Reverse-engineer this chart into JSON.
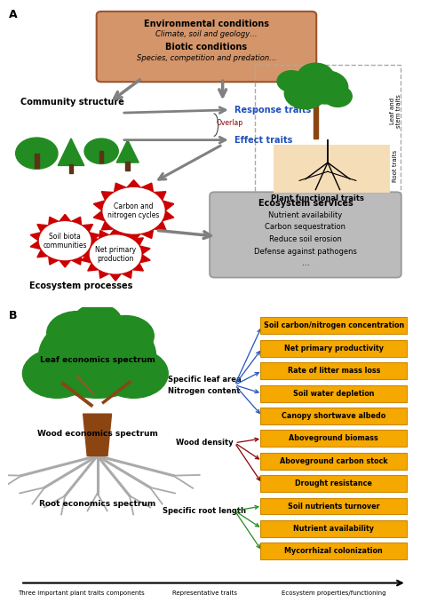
{
  "fig_width": 4.74,
  "fig_height": 6.78,
  "dpi": 100,
  "panel_a": {
    "label": "A",
    "env_box_color": "#D4956A",
    "env_box_edge": "#A0522D",
    "env_title": "Environmental conditions",
    "env_sub": "Climate, soil and geology…",
    "bio_title": "Biotic conditions",
    "bio_sub": "Species, competition and predation…",
    "community_structure": "Community structure",
    "response_traits": "Response traits",
    "effect_traits": "Effect traits",
    "overlap": "Overlap",
    "plant_functional_traits": "Plant functional traits",
    "leaf_stem_traits": "Leaf and\nstem traits",
    "root_traits": "Root traits",
    "es_title": "Ecosystem services",
    "es_items": [
      "Nutrient availability",
      "Carbon sequestration",
      "Reduce soil erosion",
      "Defense against pathogens",
      "…"
    ],
    "carbon_nitrogen": "Carbon and\nnitrogen cycles",
    "soil_biota": "Soil biota\ncommunities",
    "net_primary": "Net primary\nproduction",
    "ecosystem_processes": "Ecosystem processes",
    "arrow_color": "#808080",
    "blue_color": "#1F4FBB",
    "dark_red_color": "#8B0000"
  },
  "panel_b": {
    "label": "B",
    "leaf_economics": "Leaf economics spectrum",
    "wood_economics": "Wood economics spectrum",
    "root_economics": "Root economics spectrum",
    "specific_leaf_area": "Specific leaf area",
    "nitrogen_content": "Nitrogen content",
    "wood_density": "Wood density",
    "specific_root_length": "Specific root length",
    "blue_boxes": [
      "Soil carbon/nitrogen concentration",
      "Net primary productivity",
      "Rate of litter mass loss",
      "Soil water depletion",
      "Canopy shortwave albedo"
    ],
    "dark_red_boxes": [
      "Aboveground biomass",
      "Aboveground carbon stock",
      "Drought resistance"
    ],
    "green_boxes": [
      "Soil nutrients turnover",
      "Nutrient availability",
      "Mycorrhizal colonization"
    ],
    "box_color": "#F5A800",
    "box_edge": "#CC8800",
    "blue_line_color": "#2255BB",
    "dark_red_line_color": "#8B0000",
    "green_line_color": "#228B22",
    "axis_label_left": "Three important plant traits components",
    "axis_label_mid": "Representative traits",
    "axis_label_right": "Ecosystem properties/functioning",
    "tree_green": "#228B22",
    "tree_trunk": "#8B4513",
    "root_color": "#AAAAAA"
  }
}
